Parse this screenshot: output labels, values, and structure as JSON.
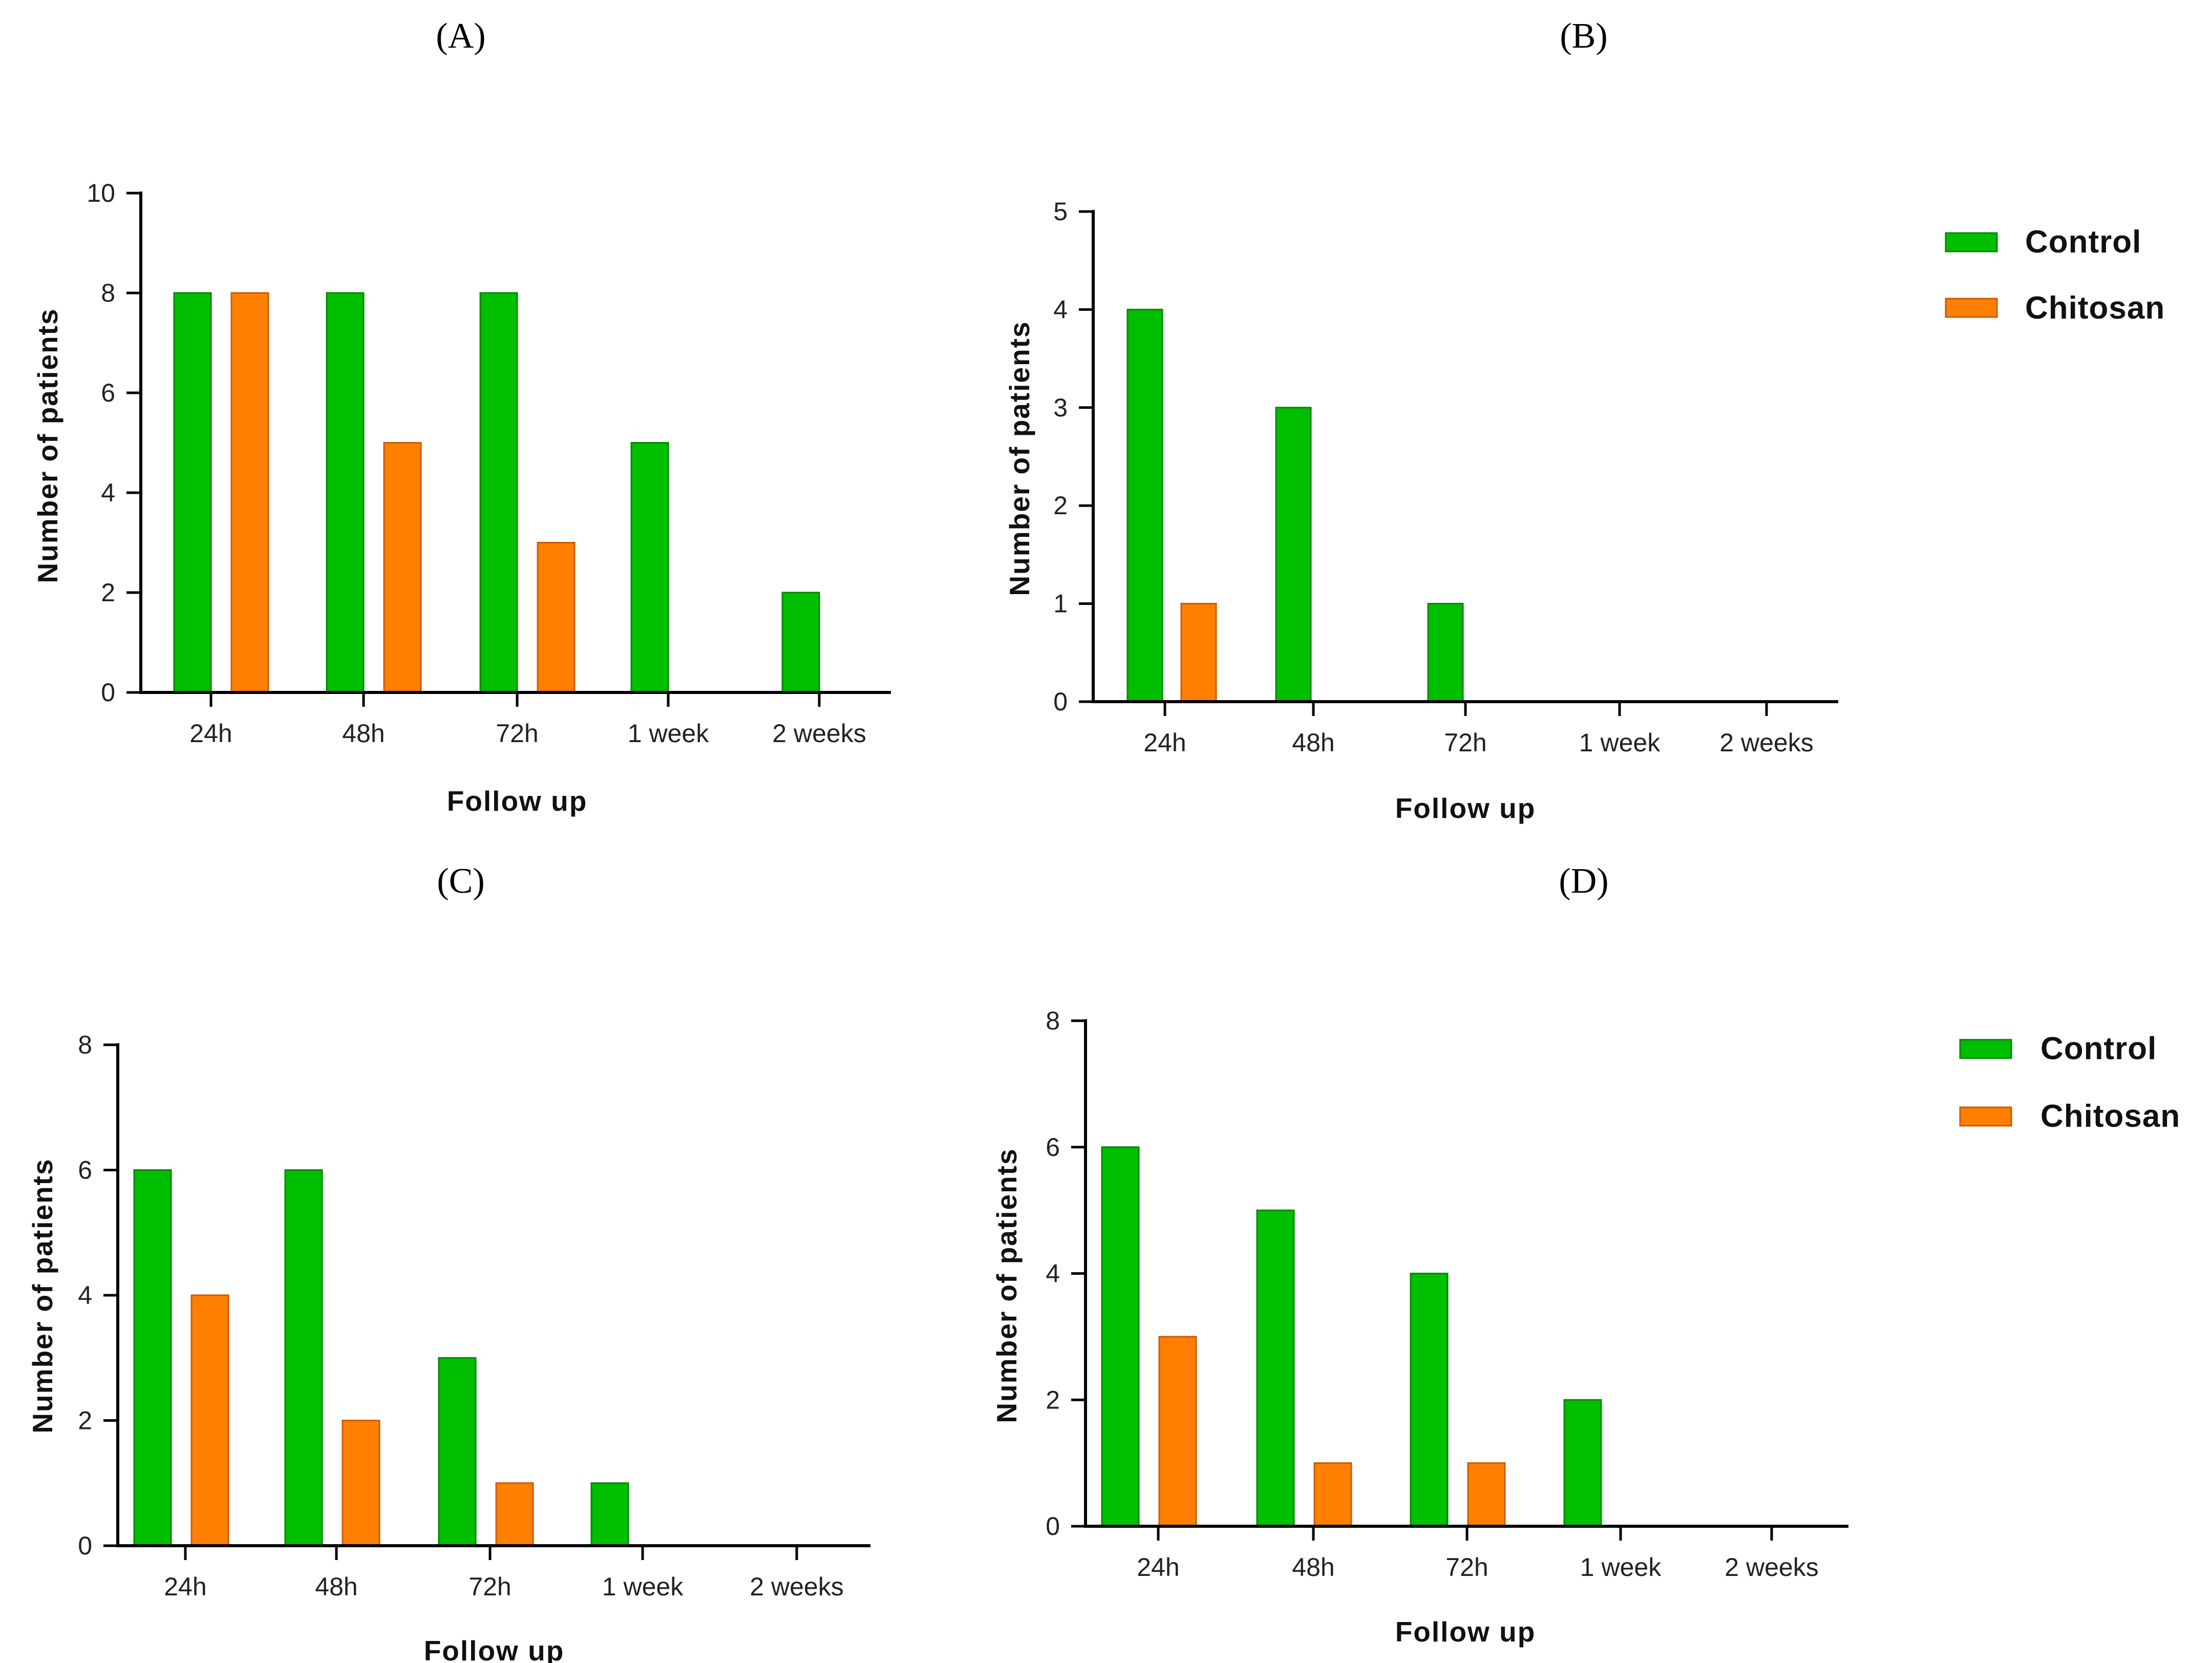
{
  "colors": {
    "control": "#00BE00",
    "chitosan": "#FF7F00"
  },
  "legend": {
    "control_label": "Control",
    "chitosan_label": "Chitosan"
  },
  "chart_data": [
    {
      "id": "A",
      "panel_label": "(A)",
      "type": "bar",
      "categories": [
        "24h",
        "48h",
        "72h",
        "1 week",
        "2 weeks"
      ],
      "series": [
        {
          "name": "Control",
          "values": [
            8,
            8,
            8,
            5,
            2
          ]
        },
        {
          "name": "Chitosan",
          "values": [
            8,
            5,
            3,
            0,
            0
          ]
        }
      ],
      "xlabel": "Follow up",
      "ylabel": "Number of patients",
      "ylim": [
        0,
        10
      ],
      "yticks": [
        0,
        2,
        4,
        6,
        8,
        10
      ]
    },
    {
      "id": "B",
      "panel_label": "(B)",
      "type": "bar",
      "categories": [
        "24h",
        "48h",
        "72h",
        "1 week",
        "2 weeks"
      ],
      "series": [
        {
          "name": "Control",
          "values": [
            4,
            3,
            1,
            0,
            0
          ]
        },
        {
          "name": "Chitosan",
          "values": [
            1,
            0,
            0,
            0,
            0
          ]
        }
      ],
      "xlabel": "Follow up",
      "ylabel": "Number of patients",
      "ylim": [
        0,
        5
      ],
      "yticks": [
        0,
        1,
        2,
        3,
        4,
        5
      ]
    },
    {
      "id": "C",
      "panel_label": "(C)",
      "type": "bar",
      "categories": [
        "24h",
        "48h",
        "72h",
        "1 week",
        "2 weeks"
      ],
      "series": [
        {
          "name": "Control",
          "values": [
            6,
            6,
            3,
            1,
            0
          ]
        },
        {
          "name": "Chitosan",
          "values": [
            4,
            2,
            1,
            0,
            0
          ]
        }
      ],
      "xlabel": "Follow up",
      "ylabel": "Number of patients",
      "ylim": [
        0,
        8
      ],
      "yticks": [
        0,
        2,
        4,
        6,
        8
      ]
    },
    {
      "id": "D",
      "panel_label": "(D)",
      "type": "bar",
      "categories": [
        "24h",
        "48h",
        "72h",
        "1 week",
        "2 weeks"
      ],
      "series": [
        {
          "name": "Control",
          "values": [
            6,
            5,
            4,
            2,
            0
          ]
        },
        {
          "name": "Chitosan",
          "values": [
            3,
            1,
            1,
            0,
            0
          ]
        }
      ],
      "xlabel": "Follow up",
      "ylabel": "Number of patients",
      "ylim": [
        0,
        8
      ],
      "yticks": [
        0,
        2,
        4,
        6,
        8
      ]
    }
  ]
}
